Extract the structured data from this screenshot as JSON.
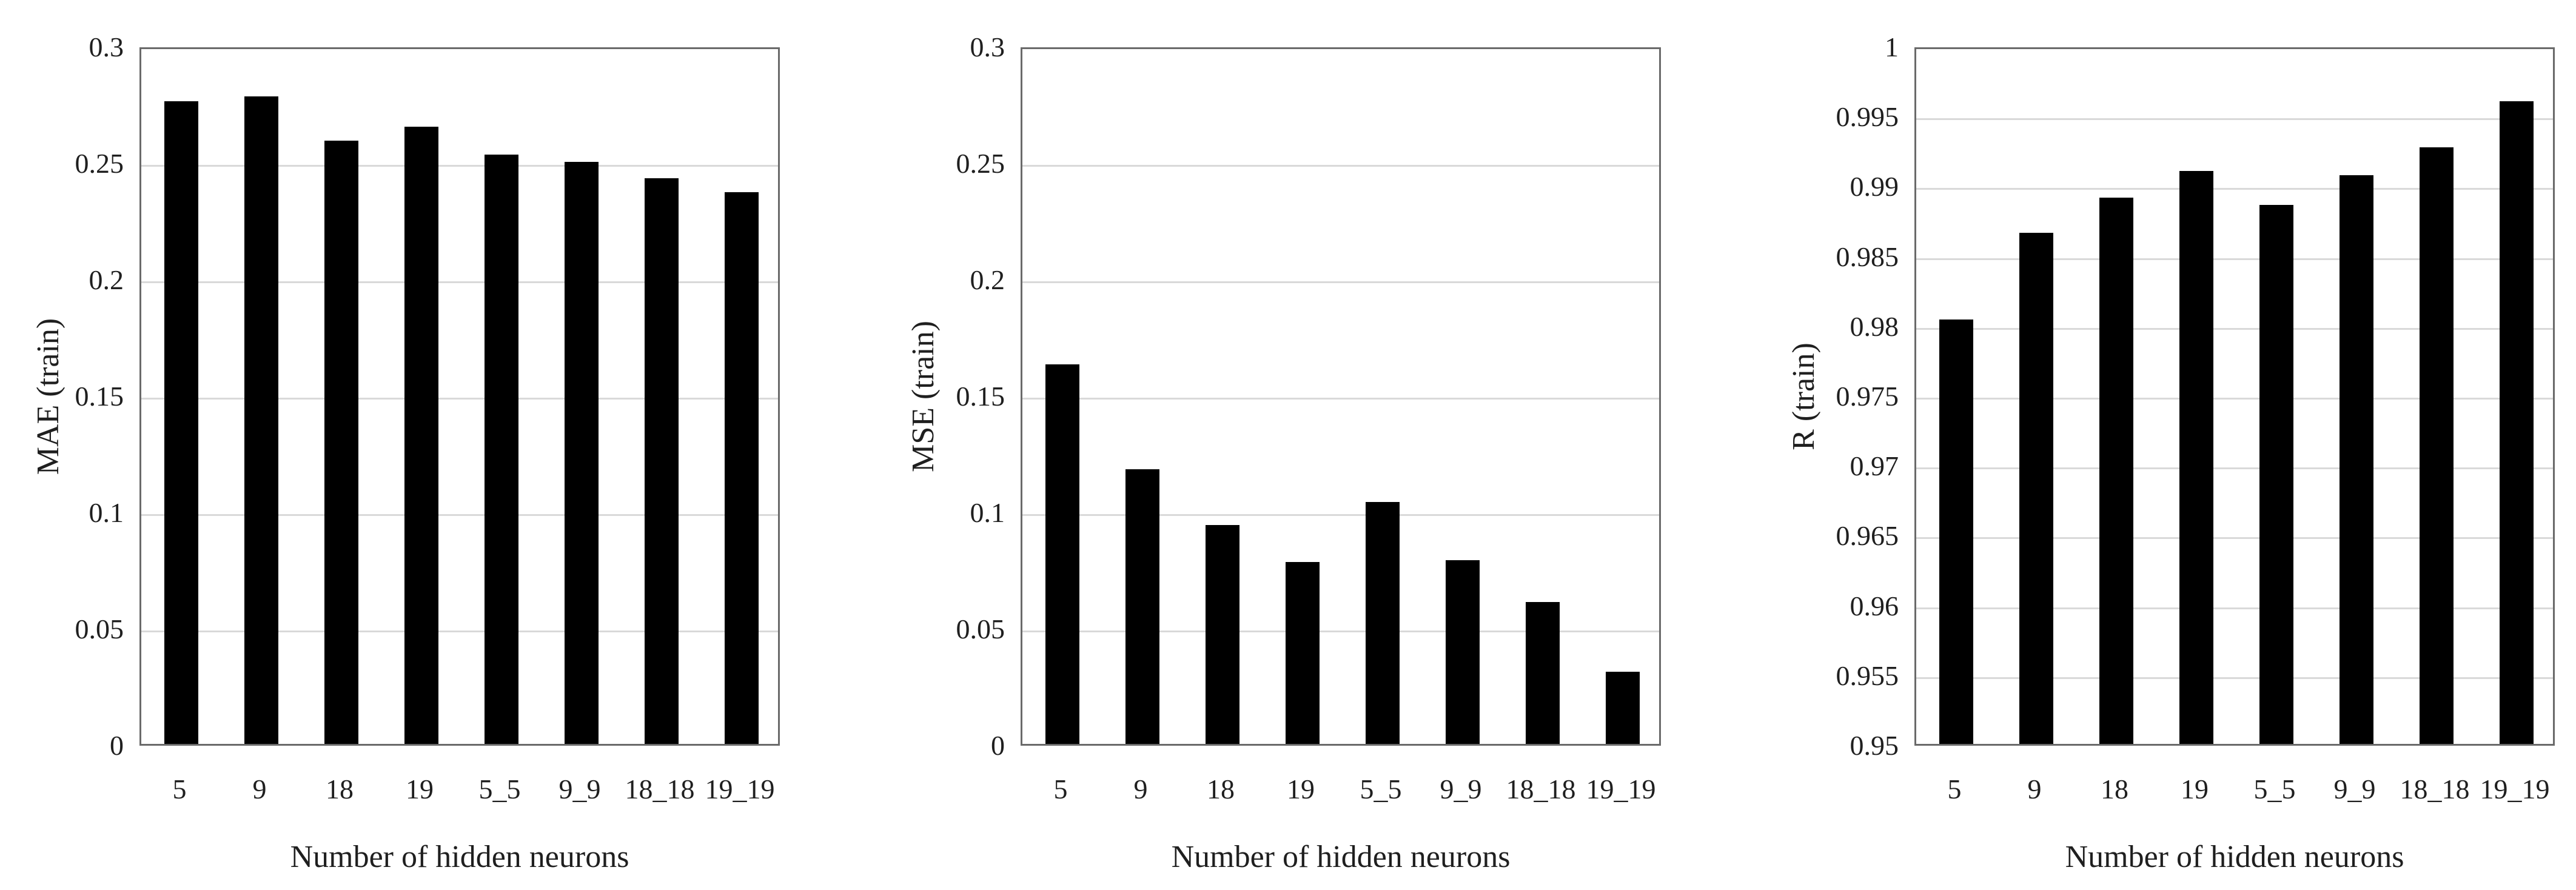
{
  "figure_title": "",
  "colors": {
    "bar": "#000000",
    "gridline": "#d9d9d9",
    "plot_border": "#6a6a6a",
    "text": "#1f1f1f"
  },
  "chart_data": [
    {
      "type": "bar",
      "title": "",
      "xlabel": "Number of hidden neurons",
      "ylabel": "MAE (train)",
      "categories": [
        "5",
        "9",
        "18",
        "19",
        "5_5",
        "9_9",
        "18_18",
        "19_19"
      ],
      "values": [
        0.276,
        0.278,
        0.259,
        0.265,
        0.253,
        0.25,
        0.243,
        0.237
      ],
      "ylim": [
        0,
        0.3
      ],
      "yticks": [
        0,
        0.05,
        0.1,
        0.15,
        0.2,
        0.25,
        0.3
      ],
      "ytick_labels": [
        "0",
        "0.05",
        "0.1",
        "0.15",
        "0.2",
        "0.25",
        "0.3"
      ],
      "grid": true,
      "legend": null
    },
    {
      "type": "bar",
      "title": "",
      "xlabel": "Number of hidden neurons",
      "ylabel": "MSE (train)",
      "categories": [
        "5",
        "9",
        "18",
        "19",
        "5_5",
        "9_9",
        "18_18",
        "19_19"
      ],
      "values": [
        0.163,
        0.118,
        0.094,
        0.078,
        0.104,
        0.079,
        0.061,
        0.031
      ],
      "ylim": [
        0,
        0.3
      ],
      "yticks": [
        0,
        0.05,
        0.1,
        0.15,
        0.2,
        0.25,
        0.3
      ],
      "ytick_labels": [
        "0",
        "0.05",
        "0.1",
        "0.15",
        "0.2",
        "0.25",
        "0.3"
      ],
      "grid": true,
      "legend": null
    },
    {
      "type": "bar",
      "title": "",
      "xlabel": "Number of hidden neurons",
      "ylabel": "R (train)",
      "categories": [
        "5",
        "9",
        "18",
        "19",
        "5_5",
        "9_9",
        "18_18",
        "19_19"
      ],
      "values": [
        0.9804,
        0.9866,
        0.9891,
        0.991,
        0.9886,
        0.9907,
        0.9927,
        0.996
      ],
      "ylim": [
        0.95,
        1
      ],
      "yticks": [
        0.95,
        0.955,
        0.96,
        0.965,
        0.97,
        0.975,
        0.98,
        0.985,
        0.99,
        0.995,
        1
      ],
      "ytick_labels": [
        "0.95",
        "0.955",
        "0.96",
        "0.965",
        "0.97",
        "0.975",
        "0.98",
        "0.985",
        "0.99",
        "0.995",
        "1"
      ],
      "grid": true,
      "legend": null
    }
  ]
}
